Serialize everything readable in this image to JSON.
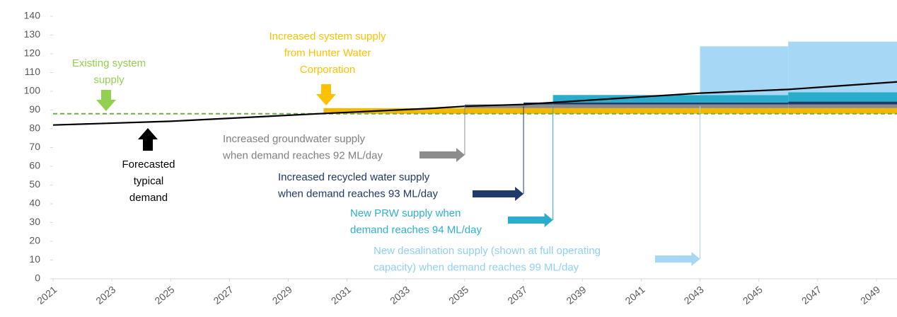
{
  "chart_data": {
    "type": "stacked-step",
    "xlim": [
      2021,
      2049.7
    ],
    "xticks": [
      2021,
      2023,
      2025,
      2027,
      2029,
      2031,
      2033,
      2035,
      2037,
      2039,
      2041,
      2043,
      2045,
      2047,
      2049
    ],
    "ylim": [
      0,
      140
    ],
    "yticks": [
      0,
      10,
      20,
      30,
      40,
      50,
      60,
      70,
      80,
      90,
      100,
      110,
      120,
      130,
      140
    ],
    "existing_supply": {
      "value": 88,
      "color": "#70ad47"
    },
    "breaks": [
      2030.2,
      2035,
      2037,
      2038,
      2043,
      2046,
      2049.7
    ],
    "series": [
      {
        "color": "#f5b800",
        "values": [
          3,
          3,
          3,
          3,
          3,
          3
        ]
      },
      {
        "color": "#8c8c8c",
        "values": [
          null,
          2,
          2,
          2,
          2,
          2
        ]
      },
      {
        "color": "#1f3b6e",
        "values": [
          null,
          null,
          1,
          1,
          1,
          1.5
        ]
      },
      {
        "color": "#2aaccc",
        "values": [
          null,
          null,
          null,
          4,
          4,
          5
        ]
      },
      {
        "color": "#a6d8f5",
        "values": [
          null,
          null,
          null,
          null,
          26,
          27
        ]
      }
    ],
    "demand": {
      "color": "#000000",
      "x": [
        2021,
        2025,
        2030,
        2034,
        2035,
        2037,
        2038,
        2043,
        2046,
        2049.7
      ],
      "values": [
        82,
        84,
        88,
        91,
        92,
        93,
        94,
        99,
        101,
        105
      ]
    },
    "annotations": [
      {
        "lines": [
          "Existing system",
          "supply"
        ],
        "color": "#92d050"
      },
      {
        "lines": [
          "Increased system supply",
          "from Hunter Water",
          "Corporation"
        ],
        "color": "#ffc000"
      },
      {
        "lines": [
          "Forecasted",
          "typical",
          "demand"
        ],
        "color": "#000000"
      },
      {
        "lines": [
          "Increased groundwater supply",
          "when demand reaches 92 ML/day"
        ],
        "color": "#808080"
      },
      {
        "lines": [
          "Increased recycled water supply",
          "when demand reaches 93 ML/day"
        ],
        "color": "#1f3864"
      },
      {
        "lines": [
          "New PRW supply when",
          "demand reaches 94 ML/day"
        ],
        "color": "#2eafd0"
      },
      {
        "lines": [
          "New desalination supply (shown at full operating",
          "capacity) when demand reaches 99 ML/day"
        ],
        "color": "#8fd0f0"
      }
    ]
  }
}
